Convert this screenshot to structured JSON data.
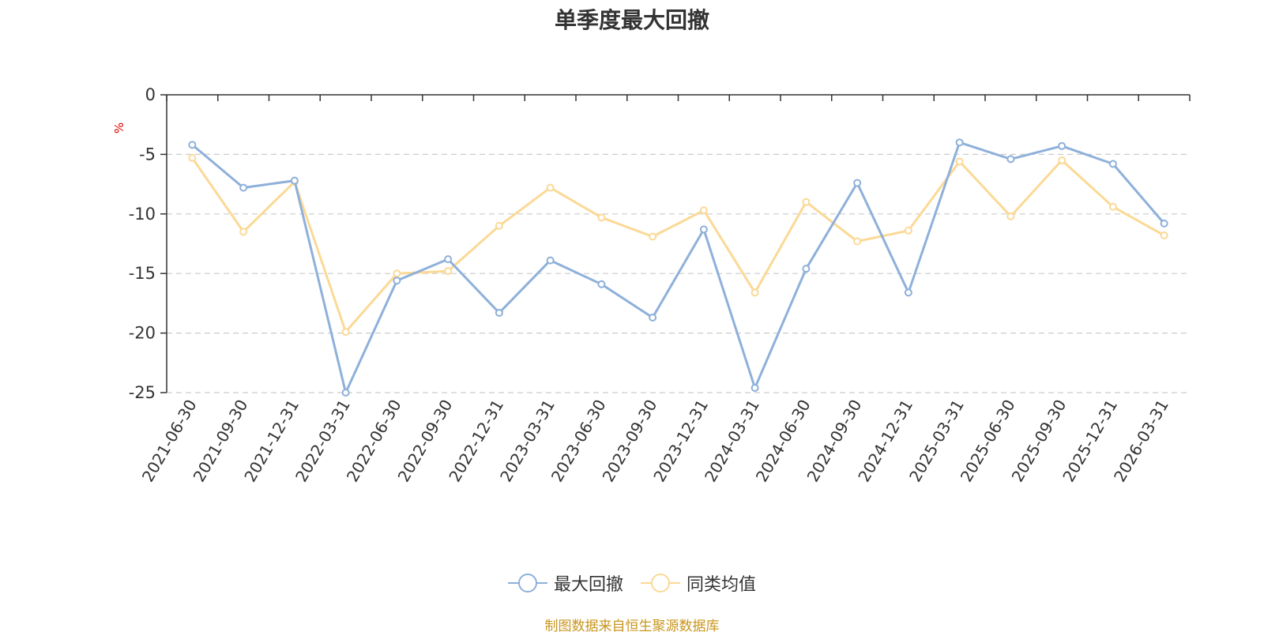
{
  "chart_data": {
    "type": "line",
    "title": "单季度最大回撤",
    "ylabel": "%",
    "xlabel": "",
    "ylim": [
      -25,
      0
    ],
    "yticks": [
      0,
      -5,
      -10,
      -15,
      -20,
      -25
    ],
    "grid": true,
    "legend_position": "bottom-center",
    "categories": [
      "2021-06-30",
      "2021-09-30",
      "2021-12-31",
      "2022-03-31",
      "2022-06-30",
      "2022-09-30",
      "2022-12-31",
      "2023-03-31",
      "2023-06-30",
      "2023-09-30",
      "2023-12-31",
      "2024-03-31",
      "2024-06-30",
      "2024-09-30",
      "2024-12-31",
      "2025-03-31",
      "2025-06-30",
      "2025-09-30",
      "2025-12-31",
      "2026-03-31"
    ],
    "series": [
      {
        "name": "最大回撤",
        "color": "#8eb0da",
        "values": [
          -4.2,
          -7.8,
          -7.2,
          -25.0,
          -15.6,
          -13.8,
          -18.3,
          -13.9,
          -15.9,
          -18.7,
          -11.3,
          -24.6,
          -14.6,
          -7.4,
          -16.6,
          -4.0,
          -5.4,
          -4.3,
          -5.8,
          -10.8
        ]
      },
      {
        "name": "同类均值",
        "color": "#fbd996",
        "values": [
          -5.3,
          -11.5,
          -7.3,
          -19.9,
          -15.0,
          -14.8,
          -11.0,
          -7.8,
          -10.3,
          -11.9,
          -9.7,
          -16.6,
          -9.0,
          -12.3,
          -11.4,
          -5.6,
          -10.2,
          -5.5,
          -9.4,
          -11.8
        ]
      }
    ]
  },
  "footer": {
    "source": "制图数据来自恒生聚源数据库"
  }
}
